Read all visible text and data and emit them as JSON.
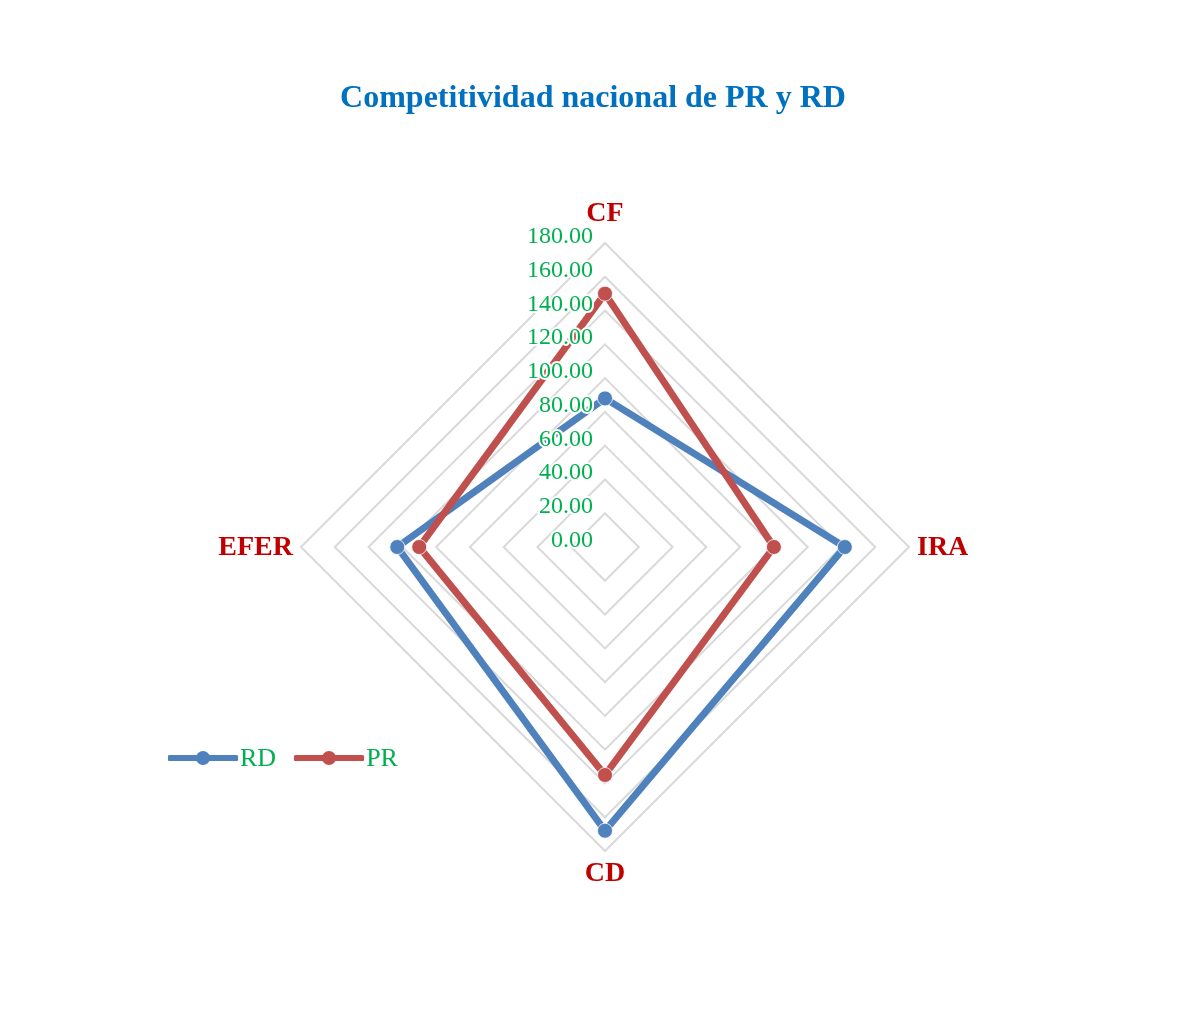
{
  "chart_data": {
    "type": "radar",
    "title": "Competitividad nacional de PR y RD",
    "categories": [
      "CF",
      "IRA",
      "CD",
      "EFER"
    ],
    "series": [
      {
        "name": "RD",
        "color": "#4f81bd",
        "values": [
          88,
          142,
          168,
          123
        ]
      },
      {
        "name": "PR",
        "color": "#c0504d",
        "values": [
          150,
          100,
          135,
          110
        ]
      }
    ],
    "ylim": [
      0,
      180
    ],
    "yticks": [
      {
        "value": 0,
        "label": "0.00"
      },
      {
        "value": 20,
        "label": "20.00"
      },
      {
        "value": 40,
        "label": "40.00"
      },
      {
        "value": 60,
        "label": "60.00"
      },
      {
        "value": 80,
        "label": "80.00"
      },
      {
        "value": 100,
        "label": "100.00"
      },
      {
        "value": 120,
        "label": "120.00"
      },
      {
        "value": 140,
        "label": "140.00"
      },
      {
        "value": 160,
        "label": "160.00"
      },
      {
        "value": 180,
        "label": "180.00"
      }
    ],
    "grid": true,
    "legend": "bottom left",
    "marker": "circle",
    "line_style": "solid"
  }
}
